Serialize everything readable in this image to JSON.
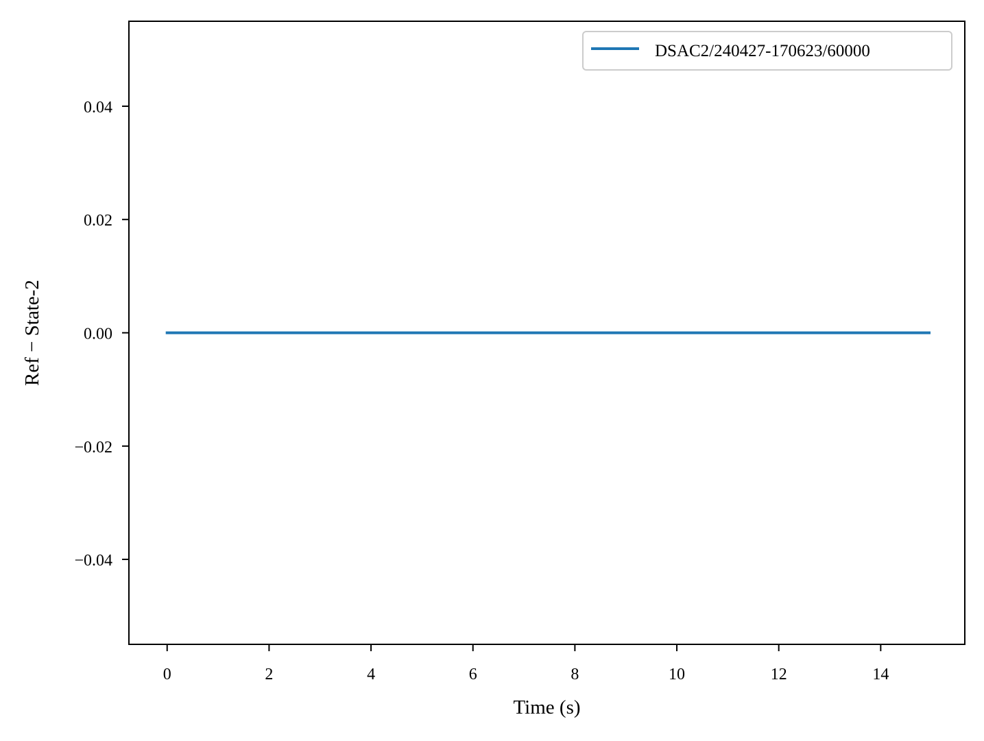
{
  "chart_data": {
    "type": "line",
    "title": "",
    "xlabel": "Time (s)",
    "ylabel": "Ref − State-2",
    "xlim": [
      -0.75,
      15.65
    ],
    "ylim": [
      -0.055,
      0.055
    ],
    "x_ticks": [
      0,
      2,
      4,
      6,
      8,
      10,
      12,
      14
    ],
    "x_tick_labels": [
      "0",
      "2",
      "4",
      "6",
      "8",
      "10",
      "12",
      "14"
    ],
    "y_ticks": [
      0.04,
      0.02,
      0.0,
      -0.02,
      -0.04
    ],
    "y_tick_labels": [
      "0.04",
      "0.02",
      "0.00",
      "−0.02",
      "−0.04"
    ],
    "grid": false,
    "legend_position": "top-right",
    "series": [
      {
        "name": "DSAC2/240427-170623/60000",
        "color": "#1f77b4",
        "x": [
          0,
          14.95
        ],
        "y": [
          0.0,
          0.0
        ]
      }
    ]
  }
}
